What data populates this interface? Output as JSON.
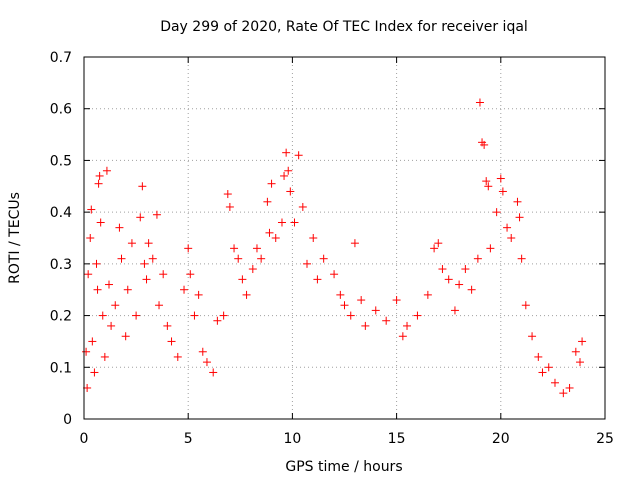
{
  "chart_data": {
    "type": "scatter",
    "title": "Day 299 of 2020, Rate Of TEC Index for receiver iqal",
    "xlabel": "GPS time / hours",
    "ylabel": "ROTI / TECUs",
    "xlim": [
      0,
      25
    ],
    "ylim": [
      0,
      0.7
    ],
    "xticks": [
      0,
      5,
      10,
      15,
      20,
      25
    ],
    "xtick_labels": [
      "0",
      "5",
      "10",
      "15",
      "20",
      "25"
    ],
    "yticks": [
      0,
      0.1,
      0.2,
      0.3,
      0.4,
      0.5,
      0.6,
      0.7
    ],
    "ytick_labels": [
      "0",
      "0.1",
      "0.2",
      "0.3",
      "0.4",
      "0.5",
      "0.6",
      "0.7"
    ],
    "grid": true,
    "marker": "+",
    "marker_color": "#ff0000",
    "series": [
      {
        "name": "ROTI",
        "points": [
          [
            0.1,
            0.13
          ],
          [
            0.15,
            0.06
          ],
          [
            0.2,
            0.28
          ],
          [
            0.3,
            0.35
          ],
          [
            0.35,
            0.405
          ],
          [
            0.4,
            0.15
          ],
          [
            0.5,
            0.09
          ],
          [
            0.6,
            0.3
          ],
          [
            0.65,
            0.25
          ],
          [
            0.7,
            0.455
          ],
          [
            0.75,
            0.47
          ],
          [
            0.8,
            0.38
          ],
          [
            0.9,
            0.2
          ],
          [
            1.0,
            0.12
          ],
          [
            1.1,
            0.48
          ],
          [
            1.2,
            0.26
          ],
          [
            1.3,
            0.18
          ],
          [
            1.5,
            0.22
          ],
          [
            1.7,
            0.37
          ],
          [
            1.8,
            0.31
          ],
          [
            2.0,
            0.16
          ],
          [
            2.1,
            0.25
          ],
          [
            2.3,
            0.34
          ],
          [
            2.5,
            0.2
          ],
          [
            2.7,
            0.39
          ],
          [
            2.8,
            0.45
          ],
          [
            2.9,
            0.3
          ],
          [
            3.0,
            0.27
          ],
          [
            3.1,
            0.34
          ],
          [
            3.3,
            0.31
          ],
          [
            3.5,
            0.395
          ],
          [
            3.6,
            0.22
          ],
          [
            3.8,
            0.28
          ],
          [
            4.0,
            0.18
          ],
          [
            4.2,
            0.15
          ],
          [
            4.5,
            0.12
          ],
          [
            4.8,
            0.25
          ],
          [
            5.0,
            0.33
          ],
          [
            5.1,
            0.28
          ],
          [
            5.3,
            0.2
          ],
          [
            5.5,
            0.24
          ],
          [
            5.7,
            0.13
          ],
          [
            5.9,
            0.11
          ],
          [
            6.2,
            0.09
          ],
          [
            6.4,
            0.19
          ],
          [
            6.7,
            0.2
          ],
          [
            6.9,
            0.435
          ],
          [
            7.0,
            0.41
          ],
          [
            7.2,
            0.33
          ],
          [
            7.4,
            0.31
          ],
          [
            7.6,
            0.27
          ],
          [
            7.8,
            0.24
          ],
          [
            8.1,
            0.29
          ],
          [
            8.3,
            0.33
          ],
          [
            8.5,
            0.31
          ],
          [
            8.8,
            0.42
          ],
          [
            8.9,
            0.36
          ],
          [
            9.0,
            0.455
          ],
          [
            9.2,
            0.35
          ],
          [
            9.5,
            0.38
          ],
          [
            9.6,
            0.47
          ],
          [
            9.7,
            0.515
          ],
          [
            9.8,
            0.48
          ],
          [
            9.9,
            0.44
          ],
          [
            10.1,
            0.38
          ],
          [
            10.3,
            0.51
          ],
          [
            10.5,
            0.41
          ],
          [
            10.7,
            0.3
          ],
          [
            11.0,
            0.35
          ],
          [
            11.2,
            0.27
          ],
          [
            11.5,
            0.31
          ],
          [
            12.0,
            0.28
          ],
          [
            12.3,
            0.24
          ],
          [
            12.5,
            0.22
          ],
          [
            12.8,
            0.2
          ],
          [
            13.0,
            0.34
          ],
          [
            13.3,
            0.23
          ],
          [
            13.5,
            0.18
          ],
          [
            14.0,
            0.21
          ],
          [
            14.5,
            0.19
          ],
          [
            15.0,
            0.23
          ],
          [
            15.3,
            0.16
          ],
          [
            15.5,
            0.18
          ],
          [
            16.0,
            0.2
          ],
          [
            16.5,
            0.24
          ],
          [
            16.8,
            0.33
          ],
          [
            17.0,
            0.34
          ],
          [
            17.2,
            0.29
          ],
          [
            17.5,
            0.27
          ],
          [
            17.8,
            0.21
          ],
          [
            18.0,
            0.26
          ],
          [
            18.3,
            0.29
          ],
          [
            18.6,
            0.25
          ],
          [
            18.9,
            0.31
          ],
          [
            19.0,
            0.612
          ],
          [
            19.1,
            0.535
          ],
          [
            19.2,
            0.53
          ],
          [
            19.3,
            0.46
          ],
          [
            19.4,
            0.45
          ],
          [
            19.5,
            0.33
          ],
          [
            19.8,
            0.4
          ],
          [
            20.0,
            0.465
          ],
          [
            20.1,
            0.44
          ],
          [
            20.3,
            0.37
          ],
          [
            20.5,
            0.35
          ],
          [
            20.8,
            0.42
          ],
          [
            20.9,
            0.39
          ],
          [
            21.0,
            0.31
          ],
          [
            21.2,
            0.22
          ],
          [
            21.5,
            0.16
          ],
          [
            21.8,
            0.12
          ],
          [
            22.0,
            0.09
          ],
          [
            22.3,
            0.1
          ],
          [
            22.6,
            0.07
          ],
          [
            23.0,
            0.05
          ],
          [
            23.3,
            0.06
          ],
          [
            23.6,
            0.13
          ],
          [
            23.8,
            0.11
          ],
          [
            23.9,
            0.15
          ]
        ]
      }
    ]
  }
}
